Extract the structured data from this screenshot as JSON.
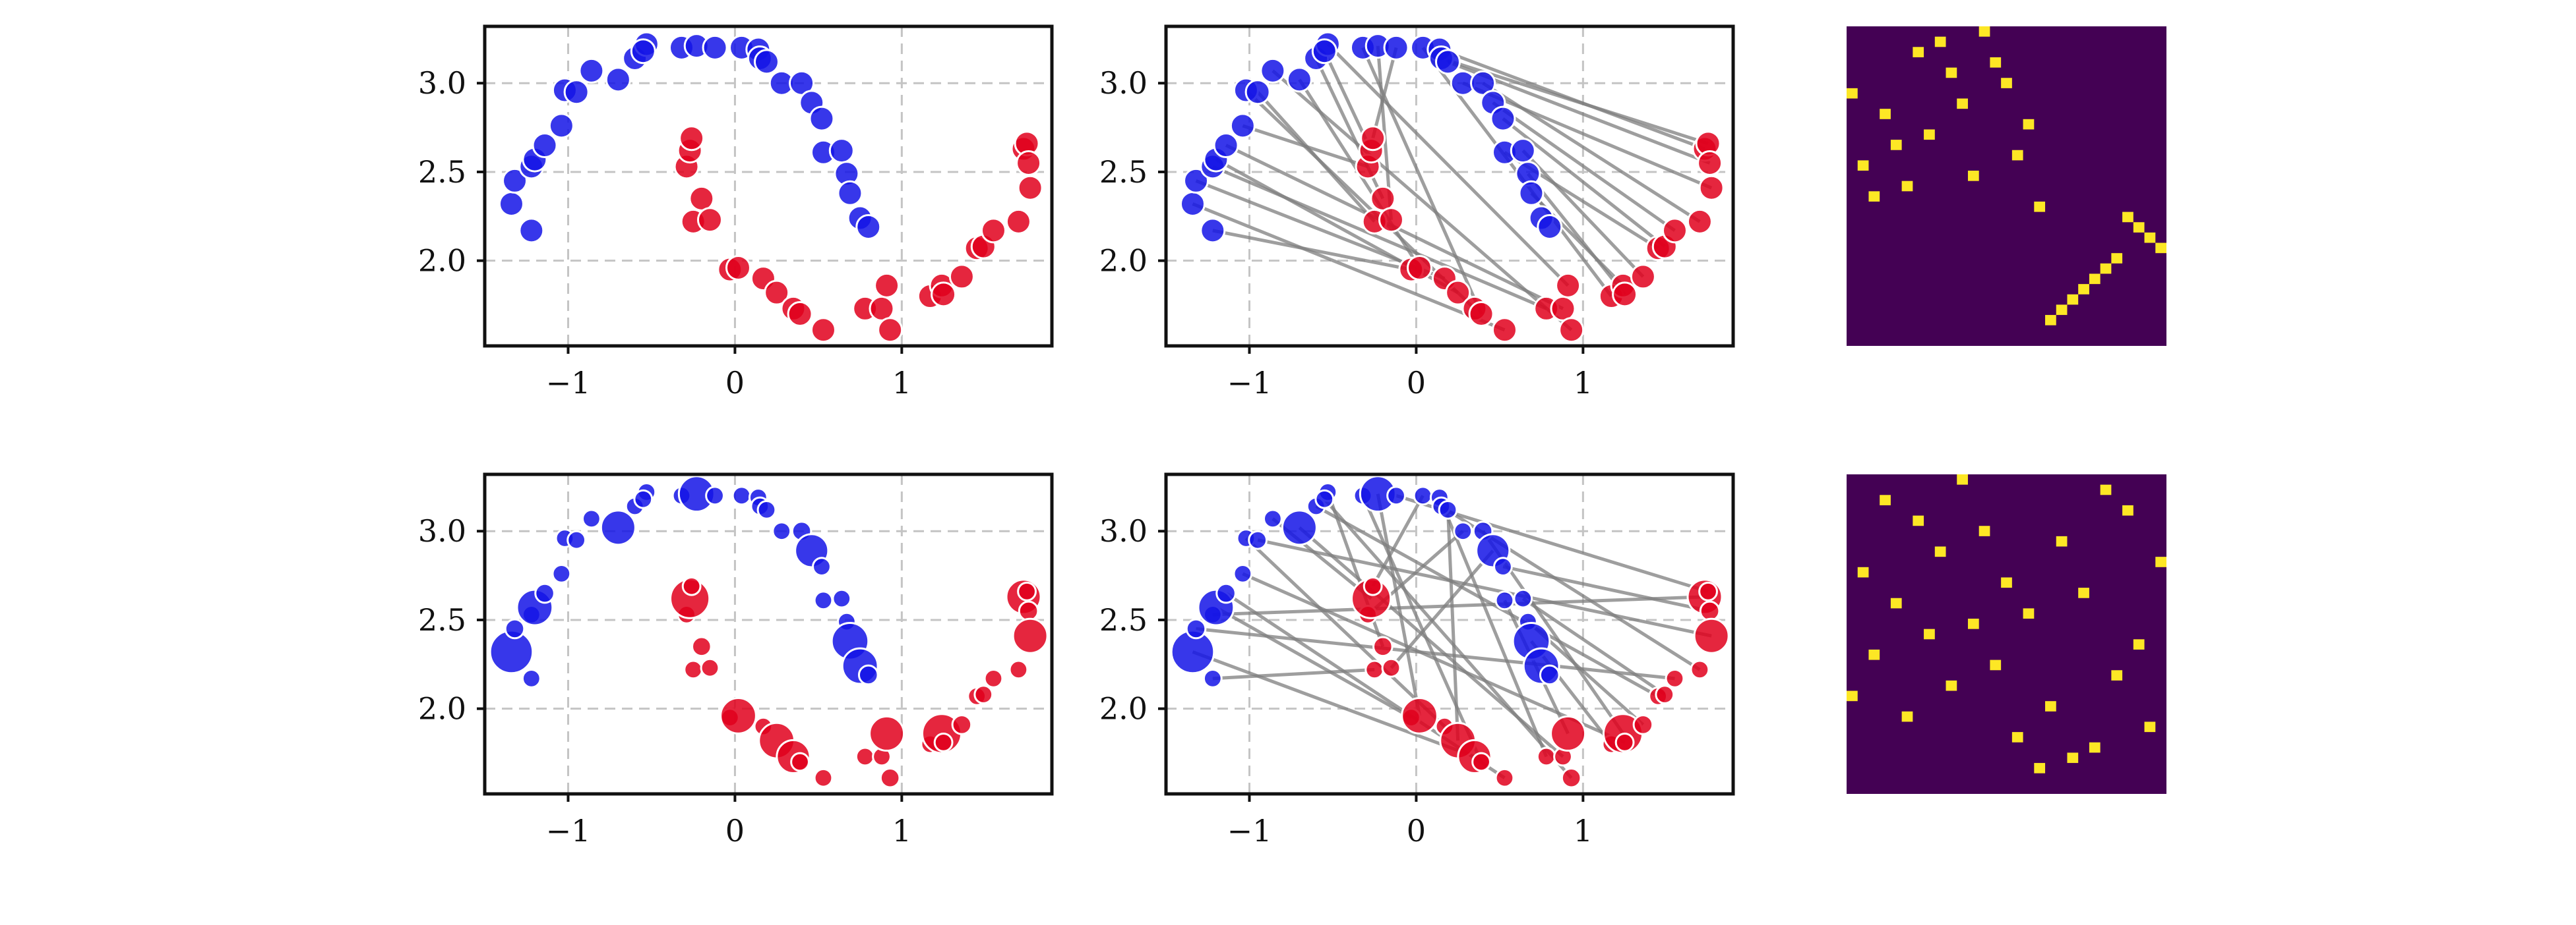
{
  "colors": {
    "source": "#1414e6",
    "target": "#e0001c",
    "matrix_bg": "#440154",
    "matrix_on": "#fde725",
    "match_line": "#7d7d7d",
    "grid": "#c4c4c4",
    "frame": "#111111"
  },
  "chart_data": {
    "type": "scatter",
    "xlim": [
      -1.5,
      1.9
    ],
    "ylim": [
      1.52,
      3.32
    ],
    "xticks": [
      -1,
      0,
      1
    ],
    "xtick_labels": [
      "−1",
      "0",
      "1"
    ],
    "yticks": [
      2.0,
      2.5,
      3.0
    ],
    "ytick_labels": [
      "2.0",
      "2.5",
      "3.0"
    ],
    "grid": true,
    "blue": [
      [
        -1.34,
        2.32
      ],
      [
        -1.32,
        2.45
      ],
      [
        -1.22,
        2.17
      ],
      [
        -1.22,
        2.53
      ],
      [
        -1.2,
        2.57
      ],
      [
        -1.14,
        2.65
      ],
      [
        -1.04,
        2.76
      ],
      [
        -1.02,
        2.96
      ],
      [
        -0.95,
        2.95
      ],
      [
        -0.86,
        3.07
      ],
      [
        -0.7,
        3.02
      ],
      [
        -0.6,
        3.14
      ],
      [
        -0.53,
        3.22
      ],
      [
        -0.55,
        3.18
      ],
      [
        -0.32,
        3.2
      ],
      [
        -0.23,
        3.21
      ],
      [
        -0.12,
        3.2
      ],
      [
        0.04,
        3.2
      ],
      [
        0.14,
        3.19
      ],
      [
        0.15,
        3.14
      ],
      [
        0.19,
        3.12
      ],
      [
        0.28,
        3.0
      ],
      [
        0.4,
        3.0
      ],
      [
        0.46,
        2.89
      ],
      [
        0.52,
        2.8
      ],
      [
        0.53,
        2.61
      ],
      [
        0.64,
        2.62
      ],
      [
        0.67,
        2.49
      ],
      [
        0.69,
        2.38
      ],
      [
        0.75,
        2.24
      ],
      [
        0.8,
        2.19
      ]
    ],
    "red": [
      [
        -0.29,
        2.53
      ],
      [
        -0.27,
        2.62
      ],
      [
        -0.26,
        2.69
      ],
      [
        -0.25,
        2.22
      ],
      [
        -0.2,
        2.35
      ],
      [
        -0.15,
        2.23
      ],
      [
        -0.03,
        1.95
      ],
      [
        0.02,
        1.96
      ],
      [
        0.17,
        1.9
      ],
      [
        0.25,
        1.82
      ],
      [
        0.35,
        1.73
      ],
      [
        0.39,
        1.7
      ],
      [
        0.53,
        1.61
      ],
      [
        0.78,
        1.73
      ],
      [
        0.88,
        1.73
      ],
      [
        0.91,
        1.86
      ],
      [
        0.93,
        1.61
      ],
      [
        1.17,
        1.8
      ],
      [
        1.24,
        1.86
      ],
      [
        1.25,
        1.81
      ],
      [
        1.36,
        1.91
      ],
      [
        1.45,
        2.07
      ],
      [
        1.49,
        2.08
      ],
      [
        1.55,
        2.17
      ],
      [
        1.7,
        2.22
      ],
      [
        1.73,
        2.63
      ],
      [
        1.75,
        2.66
      ],
      [
        1.76,
        2.55
      ],
      [
        1.77,
        2.41
      ]
    ],
    "blue_weights_row2": [
      1.35,
      0.35,
      0.3,
      0.3,
      1.05,
      0.35,
      0.3,
      0.3,
      0.3,
      0.3,
      1.0,
      0.3,
      0.3,
      0.3,
      0.3,
      1.05,
      0.3,
      0.3,
      0.3,
      0.3,
      0.3,
      0.3,
      0.35,
      0.95,
      0.3,
      0.3,
      0.3,
      0.3,
      1.1,
      1.05,
      0.35
    ],
    "red_weights_row2": [
      0.3,
      1.2,
      0.3,
      0.3,
      0.35,
      0.3,
      0.3,
      1.05,
      0.3,
      1.05,
      0.95,
      0.3,
      0.3,
      0.3,
      0.3,
      1.0,
      0.35,
      0.3,
      1.2,
      0.3,
      0.35,
      0.3,
      0.3,
      0.3,
      0.3,
      1.0,
      0.3,
      0.35,
      1.0
    ],
    "matching_row1": [
      [
        0,
        12
      ],
      [
        1,
        8
      ],
      [
        2,
        6
      ],
      [
        3,
        13
      ],
      [
        4,
        9
      ],
      [
        5,
        14
      ],
      [
        6,
        0
      ],
      [
        7,
        10
      ],
      [
        8,
        3
      ],
      [
        9,
        16
      ],
      [
        10,
        7
      ],
      [
        11,
        4
      ],
      [
        12,
        15
      ],
      [
        13,
        1
      ],
      [
        14,
        11
      ],
      [
        15,
        5
      ],
      [
        16,
        2
      ],
      [
        17,
        17
      ],
      [
        18,
        25
      ],
      [
        19,
        26
      ],
      [
        20,
        27
      ],
      [
        21,
        28
      ],
      [
        22,
        24
      ],
      [
        23,
        23
      ],
      [
        24,
        22
      ],
      [
        25,
        21
      ],
      [
        26,
        20
      ],
      [
        27,
        19
      ],
      [
        28,
        18
      ]
    ],
    "matching_row2": [
      [
        0,
        10
      ],
      [
        1,
        23
      ],
      [
        2,
        3
      ],
      [
        3,
        25
      ],
      [
        4,
        6
      ],
      [
        5,
        12
      ],
      [
        6,
        19
      ],
      [
        7,
        8
      ],
      [
        8,
        28
      ],
      [
        9,
        1
      ],
      [
        10,
        14
      ],
      [
        11,
        21
      ],
      [
        12,
        4
      ],
      [
        13,
        16
      ],
      [
        14,
        11
      ],
      [
        15,
        7
      ],
      [
        16,
        26
      ],
      [
        17,
        2
      ],
      [
        18,
        13
      ],
      [
        19,
        24
      ],
      [
        20,
        9
      ],
      [
        21,
        0
      ],
      [
        22,
        18
      ],
      [
        23,
        5
      ],
      [
        24,
        27
      ],
      [
        25,
        15
      ],
      [
        26,
        22
      ],
      [
        27,
        20
      ],
      [
        28,
        17
      ]
    ],
    "matrix_size": [
      31,
      29
    ]
  }
}
